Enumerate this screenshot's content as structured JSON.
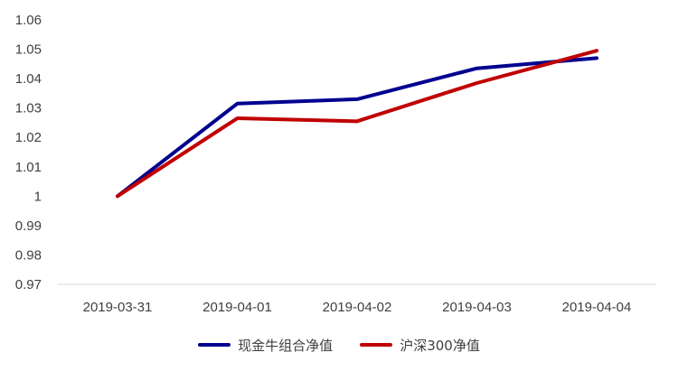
{
  "chart_data": {
    "type": "line",
    "categories": [
      "2019-03-31",
      "2019-04-01",
      "2019-04-02",
      "2019-04-03",
      "2019-04-04"
    ],
    "series": [
      {
        "name": "现金牛组合净值",
        "values": [
          1.0,
          1.0315,
          1.033,
          1.0435,
          1.047
        ],
        "color": "#000090"
      },
      {
        "name": "沪深300净值",
        "values": [
          1.0,
          1.0265,
          1.0255,
          1.0385,
          1.0495
        ],
        "color": "#C00000"
      }
    ],
    "ylim": [
      0.97,
      1.06
    ],
    "yticks": [
      "0.97",
      "0.98",
      "0.99",
      "1",
      "1.01",
      "1.02",
      "1.03",
      "1.04",
      "1.05",
      "1.06"
    ],
    "grid": false,
    "legend_position": "bottom",
    "title": "",
    "xlabel": "",
    "ylabel": ""
  }
}
